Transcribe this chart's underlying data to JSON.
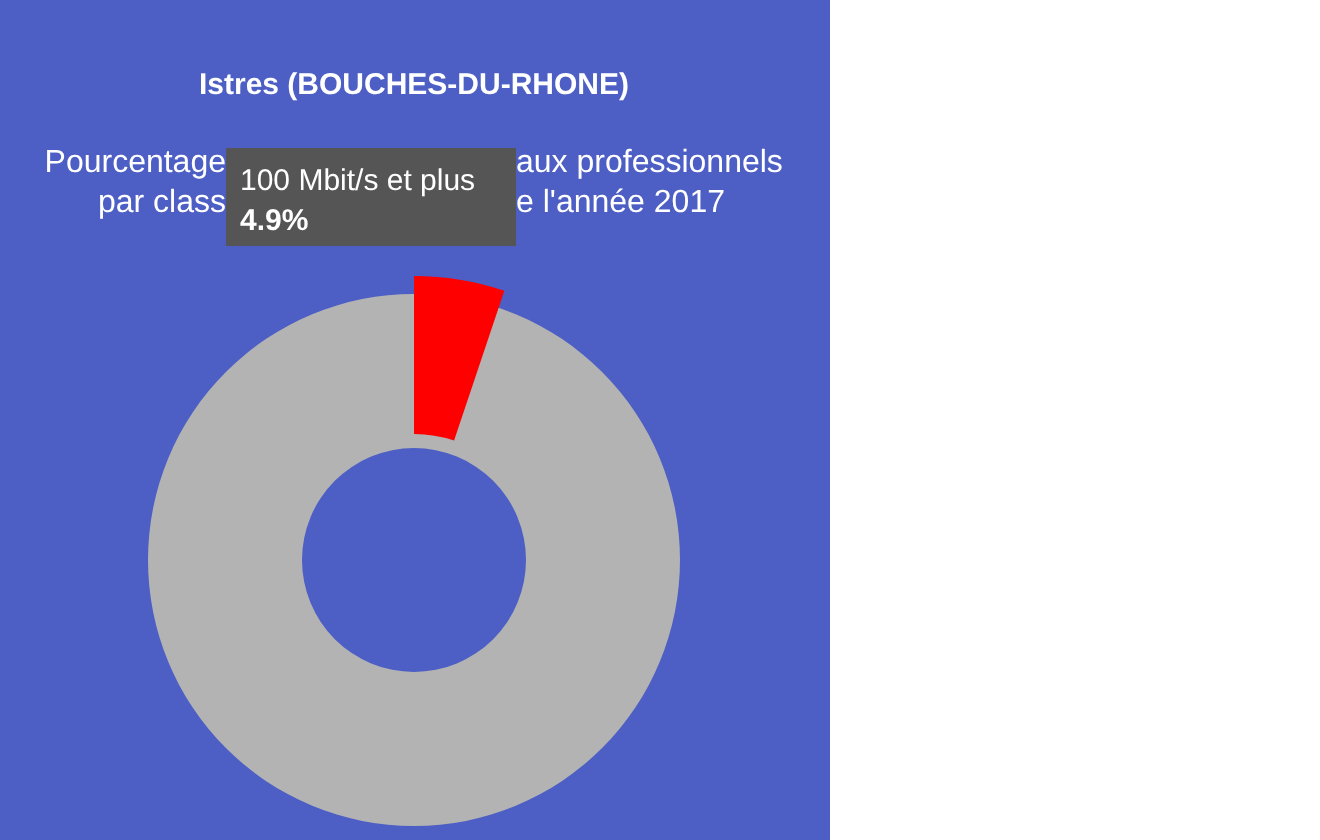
{
  "chart_data": {
    "type": "donut",
    "title": "Istres (BOUCHES-DU-RHONE)",
    "subtitle": [
      "Pourcentage",
      "aux professionnels",
      "par class",
      "e l'année 2017"
    ],
    "categories": [
      null,
      "100 Mbit/s et plus"
    ],
    "values": [
      95.1,
      4.9
    ],
    "colors": [
      "#b3b3b3",
      "#ff0000"
    ],
    "value_labels": [
      null,
      "4.9%"
    ]
  }
}
